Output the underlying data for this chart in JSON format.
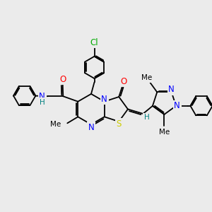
{
  "background_color": "#ebebeb",
  "figsize": [
    3.0,
    3.0
  ],
  "dpi": 100,
  "atom_colors": {
    "N": "#0000ff",
    "O": "#ff0000",
    "S": "#cccc00",
    "Cl": "#00aa00",
    "H": "#008080",
    "C": "black"
  },
  "bond_lw": 1.3,
  "xlim": [
    -4.5,
    5.5
  ],
  "ylim": [
    -3.2,
    3.8
  ]
}
